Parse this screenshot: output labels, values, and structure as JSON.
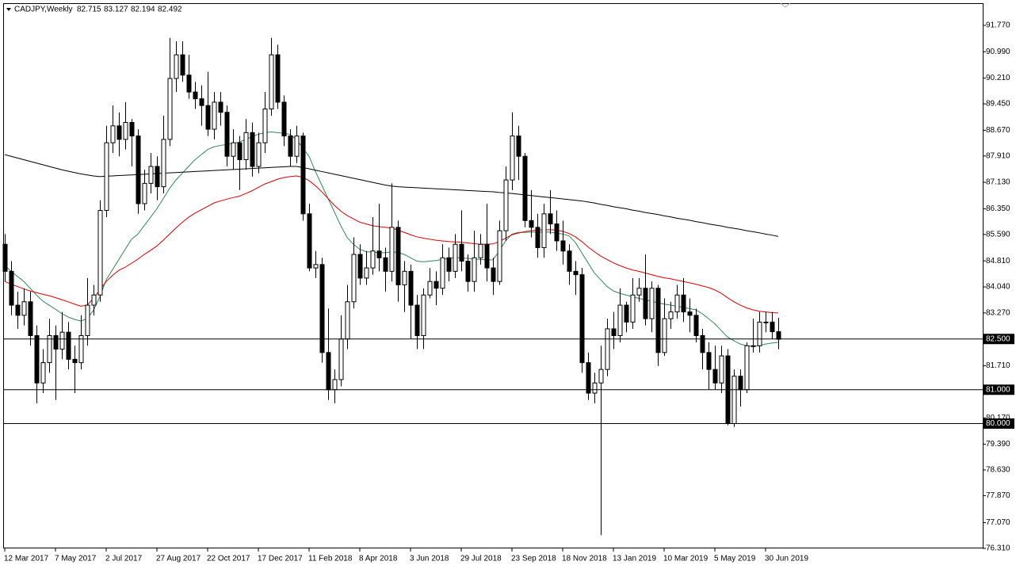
{
  "chart_data": {
    "type": "candlestick",
    "symbol": "CADJPY,Weekly",
    "categories": [
      "12 Mar 2017",
      null,
      null,
      null,
      null,
      null,
      null,
      null,
      "7 May 2017",
      null,
      null,
      null,
      null,
      null,
      null,
      null,
      "2 Jul 2017",
      null,
      null,
      null,
      null,
      null,
      null,
      null,
      "27 Aug 2017",
      null,
      null,
      null,
      null,
      null,
      null,
      null,
      "22 Oct 2017",
      null,
      null,
      null,
      null,
      null,
      null,
      null,
      "17 Dec 2017",
      null,
      null,
      null,
      null,
      null,
      null,
      null,
      "11 Feb 2018",
      null,
      null,
      null,
      null,
      null,
      null,
      null,
      "8 Apr 2018",
      null,
      null,
      null,
      null,
      null,
      null,
      null,
      "3 Jun 2018",
      null,
      null,
      null,
      null,
      null,
      null,
      null,
      "29 Jul 2018",
      null,
      null,
      null,
      null,
      null,
      null,
      null,
      "23 Sep 2018",
      null,
      null,
      null,
      null,
      null,
      null,
      null,
      "18 Nov 2018",
      null,
      null,
      null,
      null,
      null,
      null,
      null,
      "13 Jan 2019",
      null,
      null,
      null,
      null,
      null,
      null,
      null,
      "10 Mar 2019",
      null,
      null,
      null,
      null,
      null,
      null,
      null,
      "5 May 2019",
      null,
      null,
      null,
      null,
      null,
      null,
      null,
      "30 Jun 2019",
      null,
      null
    ],
    "open": [
      85.3,
      84.5,
      83.5,
      83.2,
      83.6,
      82.6,
      81.2,
      81.8,
      82.6,
      82.2,
      82.7,
      81.9,
      81.8,
      82.6,
      83.5,
      83.8,
      86.3,
      88.3,
      88.8,
      88.4,
      88.9,
      88.5,
      86.5,
      87.1,
      87.6,
      87.0,
      88.4,
      90.2,
      90.9,
      90.3,
      89.8,
      89.6,
      89.4,
      88.7,
      89.5,
      89.2,
      87.9,
      88.3,
      87.8,
      88.6,
      87.6,
      88.3,
      89.3,
      90.9,
      89.5,
      88.5,
      87.9,
      88.5,
      86.2,
      84.6,
      84.7,
      82.1,
      81.0,
      81.3,
      82.5,
      83.6,
      85.0,
      84.3,
      84.6,
      85.1,
      84.9,
      84.5,
      85.8,
      84.1,
      84.5,
      83.5,
      82.6,
      83.8,
      84.2,
      84.0,
      84.9,
      84.5,
      85.3,
      84.8,
      84.2,
      84.9,
      85.3,
      84.6,
      84.2,
      85.7,
      87.2,
      88.5,
      87.9,
      86.0,
      85.8,
      85.2,
      86.2,
      85.9,
      85.4,
      85.1,
      84.5,
      84.4,
      81.8,
      80.9,
      81.2,
      81.6,
      82.8,
      82.6,
      83.5,
      83.0,
      83.8,
      84.0,
      83.1,
      84.0,
      82.1,
      83.1,
      83.3,
      83.8,
      83.3,
      83.2,
      82.6,
      82.1,
      81.6,
      81.2,
      82.0,
      80.0,
      81.4,
      81.0,
      82.3,
      82.3,
      83.0,
      83.0,
      82.715
    ],
    "high": [
      85.6,
      84.8,
      83.9,
      84.0,
      83.9,
      82.9,
      82.2,
      83.1,
      82.9,
      83.3,
      83.0,
      82.3,
      83.2,
      84.3,
      84.1,
      86.6,
      88.8,
      89.4,
      89.2,
      89.5,
      89.0,
      88.7,
      87.5,
      88.0,
      87.9,
      89.1,
      91.4,
      91.3,
      91.3,
      90.9,
      90.1,
      90.0,
      90.4,
      89.8,
      89.8,
      89.4,
      88.7,
      88.5,
      89.0,
      88.9,
      88.6,
      89.8,
      91.4,
      91.2,
      89.7,
      88.7,
      88.8,
      88.6,
      86.5,
      85.1,
      84.9,
      83.4,
      81.6,
      83.2,
      84.1,
      85.5,
      85.3,
      85.1,
      86.1,
      86.5,
      85.2,
      87.1,
      86.0,
      84.8,
      84.7,
      83.8,
      84.0,
      84.6,
      84.5,
      85.3,
      85.2,
      85.6,
      86.3,
      85.0,
      85.7,
      85.6,
      86.5,
      84.9,
      86.0,
      87.6,
      89.2,
      88.8,
      88.0,
      86.9,
      86.2,
      86.5,
      86.9,
      86.3,
      86.0,
      85.3,
      84.8,
      84.6,
      82.1,
      81.5,
      82.3,
      83.1,
      83.3,
      84.0,
      83.6,
      84.3,
      84.3,
      85.0,
      84.2,
      84.1,
      83.7,
      83.6,
      84.1,
      84.3,
      83.7,
      83.4,
      82.8,
      82.4,
      82.3,
      82.3,
      82.2,
      81.6,
      81.6,
      82.4,
      83.1,
      83.3,
      83.3,
      83.3,
      83.127
    ],
    "low": [
      84.2,
      83.2,
      82.8,
      82.9,
      82.3,
      80.6,
      80.9,
      81.5,
      80.7,
      81.9,
      81.6,
      80.9,
      81.6,
      82.3,
      83.2,
      83.6,
      86.1,
      88.0,
      87.9,
      88.1,
      87.6,
      86.2,
      86.3,
      86.8,
      86.6,
      86.8,
      88.2,
      89.8,
      90.1,
      89.6,
      89.3,
      88.8,
      88.5,
      88.4,
      88.8,
      87.6,
      87.5,
      86.9,
      87.5,
      87.3,
      87.4,
      88.0,
      89.1,
      89.3,
      88.2,
      87.6,
      87.7,
      86.0,
      84.5,
      84.3,
      81.8,
      80.7,
      80.6,
      81.1,
      82.2,
      83.4,
      84.1,
      84.1,
      84.4,
      84.5,
      83.9,
      84.2,
      83.6,
      83.3,
      82.5,
      82.2,
      82.2,
      83.7,
      83.5,
      83.8,
      84.2,
      84.3,
      84.5,
      83.9,
      83.9,
      84.7,
      84.2,
      83.8,
      84.1,
      85.4,
      86.9,
      87.2,
      85.8,
      85.5,
      84.9,
      84.9,
      85.6,
      85.1,
      84.7,
      84.1,
      83.8,
      81.5,
      80.7,
      80.6,
      76.7,
      81.4,
      82.2,
      82.4,
      82.7,
      82.8,
      83.6,
      82.9,
      82.7,
      81.7,
      82.0,
      82.8,
      83.1,
      83.0,
      82.7,
      82.4,
      81.6,
      81.0,
      81.0,
      80.9,
      79.95,
      79.9,
      80.5,
      80.9,
      82.1,
      82.1,
      82.7,
      82.5,
      82.194
    ],
    "close": [
      84.5,
      83.5,
      83.2,
      83.6,
      82.6,
      81.2,
      81.8,
      82.6,
      82.2,
      82.7,
      81.9,
      81.8,
      82.6,
      83.5,
      83.8,
      86.3,
      88.3,
      88.8,
      88.4,
      88.9,
      88.5,
      86.5,
      87.1,
      87.6,
      87.0,
      88.4,
      90.2,
      90.9,
      90.3,
      89.8,
      89.6,
      89.4,
      88.7,
      89.5,
      89.2,
      87.9,
      88.3,
      87.8,
      88.6,
      87.6,
      88.3,
      89.3,
      90.9,
      89.5,
      88.5,
      87.9,
      88.5,
      86.2,
      84.6,
      84.7,
      82.1,
      81.0,
      81.3,
      82.5,
      83.6,
      85.0,
      84.3,
      84.6,
      85.1,
      84.9,
      84.5,
      85.8,
      84.1,
      84.5,
      83.5,
      82.6,
      83.8,
      84.2,
      84.0,
      84.9,
      84.5,
      85.3,
      84.8,
      84.2,
      84.9,
      85.3,
      84.6,
      84.2,
      85.7,
      87.2,
      88.5,
      87.9,
      86.0,
      85.8,
      85.2,
      86.2,
      85.9,
      85.4,
      85.1,
      84.5,
      84.4,
      81.8,
      80.9,
      81.2,
      81.6,
      82.8,
      82.6,
      83.5,
      83.0,
      83.8,
      84.0,
      83.1,
      84.0,
      82.1,
      83.1,
      83.3,
      83.8,
      83.3,
      83.2,
      82.6,
      82.1,
      81.6,
      81.2,
      82.0,
      80.0,
      81.4,
      81.0,
      82.3,
      82.3,
      83.0,
      83.0,
      82.715,
      82.492
    ],
    "up_color": "#ffffff",
    "down_color": "#000000",
    "ma_lines": [
      {
        "color": "#2e8b57",
        "values": [
          84.67,
          84.5,
          84.35,
          84.2,
          84.0,
          83.8,
          83.62,
          83.5,
          83.38,
          83.25,
          83.15,
          83.08,
          83.03,
          83.1,
          83.35,
          83.75,
          84.25,
          84.55,
          84.85,
          85.15,
          85.45,
          85.6,
          85.85,
          86.1,
          86.35,
          86.65,
          86.95,
          87.2,
          87.4,
          87.6,
          87.8,
          87.95,
          88.1,
          88.18,
          88.22,
          88.25,
          88.28,
          88.32,
          88.4,
          88.48,
          88.55,
          88.6,
          88.62,
          88.6,
          88.58,
          88.55,
          88.4,
          88.15,
          87.9,
          87.45,
          87.05,
          86.65,
          86.25,
          85.85,
          85.5,
          85.3,
          85.15,
          85.08,
          85.07,
          85.05,
          85.05,
          85.07,
          85.06,
          85.0,
          84.9,
          84.8,
          84.78,
          84.8,
          84.82,
          84.85,
          84.88,
          84.9,
          84.9,
          84.88,
          84.86,
          84.85,
          84.84,
          84.84,
          85.1,
          85.4,
          85.6,
          85.65,
          85.65,
          85.66,
          85.66,
          85.66,
          85.66,
          85.63,
          85.6,
          85.55,
          85.35,
          85.05,
          84.75,
          84.45,
          84.25,
          84.05,
          83.92,
          83.85,
          83.8,
          83.75,
          83.7,
          83.66,
          83.62,
          83.57,
          83.53,
          83.5,
          83.47,
          83.43,
          83.4,
          83.36,
          83.25,
          83.1,
          82.95,
          82.75,
          82.56,
          82.45,
          82.35,
          82.3,
          82.28,
          82.3,
          82.35,
          82.38,
          82.4
        ]
      },
      {
        "color": "#e00000",
        "values": [
          84.2,
          84.12,
          84.05,
          83.98,
          83.92,
          83.87,
          83.82,
          83.78,
          83.72,
          83.66,
          83.6,
          83.53,
          83.47,
          83.5,
          83.7,
          83.95,
          84.2,
          84.38,
          84.53,
          84.62,
          84.74,
          84.86,
          85.0,
          85.12,
          85.25,
          85.42,
          85.6,
          85.78,
          85.95,
          86.1,
          86.22,
          86.32,
          86.42,
          86.52,
          86.58,
          86.63,
          86.68,
          86.72,
          86.8,
          86.88,
          86.98,
          87.08,
          87.15,
          87.22,
          87.27,
          87.3,
          87.32,
          87.28,
          87.18,
          87.03,
          86.85,
          86.65,
          86.45,
          86.28,
          86.15,
          86.05,
          85.95,
          85.9,
          85.85,
          85.82,
          85.8,
          85.78,
          85.72,
          85.65,
          85.58,
          85.52,
          85.48,
          85.45,
          85.42,
          85.4,
          85.38,
          85.37,
          85.36,
          85.34,
          85.32,
          85.3,
          85.3,
          85.31,
          85.38,
          85.48,
          85.58,
          85.63,
          85.67,
          85.7,
          85.72,
          85.73,
          85.73,
          85.72,
          85.68,
          85.62,
          85.52,
          85.38,
          85.22,
          85.08,
          84.95,
          84.85,
          84.75,
          84.67,
          84.6,
          84.54,
          84.5,
          84.45,
          84.4,
          84.35,
          84.31,
          84.28,
          84.24,
          84.2,
          84.16,
          84.12,
          84.07,
          84.02,
          83.95,
          83.85,
          83.72,
          83.6,
          83.5,
          83.42,
          83.36,
          83.32,
          83.3,
          83.28,
          83.27
        ]
      },
      {
        "color": "#000000",
        "values": [
          87.95,
          87.9,
          87.85,
          87.8,
          87.75,
          87.7,
          87.65,
          87.6,
          87.55,
          87.5,
          87.46,
          87.42,
          87.38,
          87.35,
          87.32,
          87.3,
          87.31,
          87.32,
          87.33,
          87.34,
          87.35,
          87.36,
          87.37,
          87.38,
          87.39,
          87.4,
          87.41,
          87.42,
          87.43,
          87.44,
          87.45,
          87.46,
          87.47,
          87.48,
          87.49,
          87.5,
          87.51,
          87.52,
          87.53,
          87.54,
          87.55,
          87.56,
          87.57,
          87.58,
          87.59,
          87.6,
          87.6,
          87.57,
          87.53,
          87.49,
          87.45,
          87.41,
          87.37,
          87.33,
          87.29,
          87.25,
          87.21,
          87.17,
          87.13,
          87.09,
          87.05,
          87.02,
          87.0,
          86.99,
          86.98,
          86.97,
          86.96,
          86.95,
          86.94,
          86.93,
          86.92,
          86.91,
          86.9,
          86.89,
          86.88,
          86.87,
          86.86,
          86.85,
          86.83,
          86.82,
          86.8,
          86.78,
          86.76,
          86.74,
          86.72,
          86.7,
          86.68,
          86.66,
          86.64,
          86.62,
          86.6,
          86.58,
          86.55,
          86.52,
          86.48,
          86.45,
          86.41,
          86.38,
          86.35,
          86.31,
          86.28,
          86.24,
          86.21,
          86.18,
          86.14,
          86.11,
          86.07,
          86.04,
          86.01,
          85.97,
          85.94,
          85.9,
          85.87,
          85.84,
          85.8,
          85.77,
          85.74,
          85.7,
          85.67,
          85.64,
          85.6,
          85.57,
          85.53
        ]
      }
    ],
    "ylim": [
      76.31,
      92.426
    ],
    "yticks": [
      {
        "value": 91.77,
        "label": "91.770"
      },
      {
        "value": 90.99,
        "label": "90.990"
      },
      {
        "value": 90.21,
        "label": "90.210"
      },
      {
        "value": 89.45,
        "label": "89.450"
      },
      {
        "value": 88.67,
        "label": "88.670"
      },
      {
        "value": 87.91,
        "label": "87.910"
      },
      {
        "value": 87.13,
        "label": "87.130"
      },
      {
        "value": 86.35,
        "label": "86.350"
      },
      {
        "value": 85.59,
        "label": "85.590"
      },
      {
        "value": 84.81,
        "label": "84.810"
      },
      {
        "value": 84.04,
        "label": "84.040"
      },
      {
        "value": 83.27,
        "label": "83.270"
      },
      {
        "value": 81.71,
        "label": "81.710"
      },
      {
        "value": 80.17,
        "label": "80.170"
      },
      {
        "value": 79.39,
        "label": "79.390"
      },
      {
        "value": 78.63,
        "label": "78.630"
      },
      {
        "value": 77.87,
        "label": "77.870"
      },
      {
        "value": 77.07,
        "label": "77.070"
      },
      {
        "value": 76.31,
        "label": "76.310"
      }
    ],
    "hlines": [
      {
        "value": 82.5,
        "label": "82.500"
      },
      {
        "value": 81.0,
        "label": "81.000"
      },
      {
        "value": 80.0,
        "label": "80.000"
      }
    ]
  }
}
